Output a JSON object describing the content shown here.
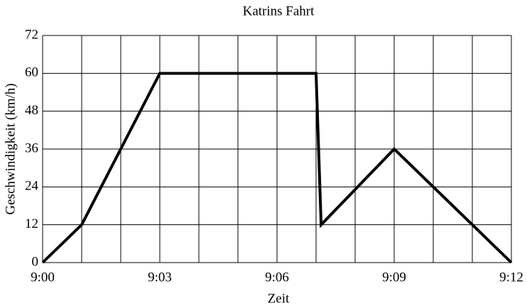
{
  "chart_data": {
    "type": "line",
    "title": "Katrins Fahrt",
    "xlabel": "Zeit",
    "ylabel": "Geschwindigkeit (km/h)",
    "x": [
      0,
      1,
      3,
      7,
      7.13,
      9,
      12
    ],
    "series": [
      {
        "color": "#000000",
        "values": [
          0,
          12,
          60,
          60,
          12,
          36,
          0
        ]
      }
    ],
    "xlim": [
      0,
      12
    ],
    "xticks": [
      {
        "value": 0,
        "label": "9:00"
      },
      {
        "value": 3,
        "label": "9:03"
      },
      {
        "value": 6,
        "label": "9:06"
      },
      {
        "value": 9,
        "label": "9:09"
      },
      {
        "value": 12,
        "label": "9:12"
      }
    ],
    "xminor": [
      1,
      2,
      4,
      5,
      7,
      8,
      10,
      11
    ],
    "ylim": [
      0,
      72
    ],
    "yticks": [
      0,
      12,
      24,
      36,
      48,
      60,
      72
    ],
    "grid": true
  }
}
